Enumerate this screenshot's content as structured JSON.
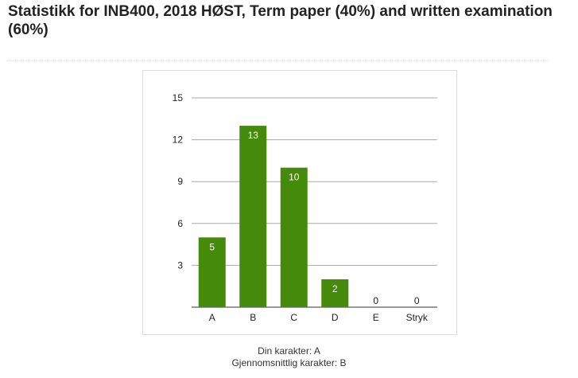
{
  "page": {
    "title": "Statistikk for INB400, 2018 HØST, Term paper (40%) and written examination (60%)",
    "your_grade": "Din karakter: A",
    "average_grade": "Gjennomsnittlig karakter: B"
  },
  "colors": {
    "bar": "#458a0a",
    "gridline": "#aaaaaa",
    "baseline": "#333333"
  },
  "chart_data": {
    "type": "bar",
    "categories": [
      "A",
      "B",
      "C",
      "D",
      "E",
      "Stryk"
    ],
    "values": [
      5,
      13,
      10,
      2,
      0,
      0
    ],
    "yticks": [
      3,
      6,
      9,
      12,
      15
    ],
    "ylim": [
      0,
      15
    ],
    "grid": true,
    "legend": "none"
  }
}
